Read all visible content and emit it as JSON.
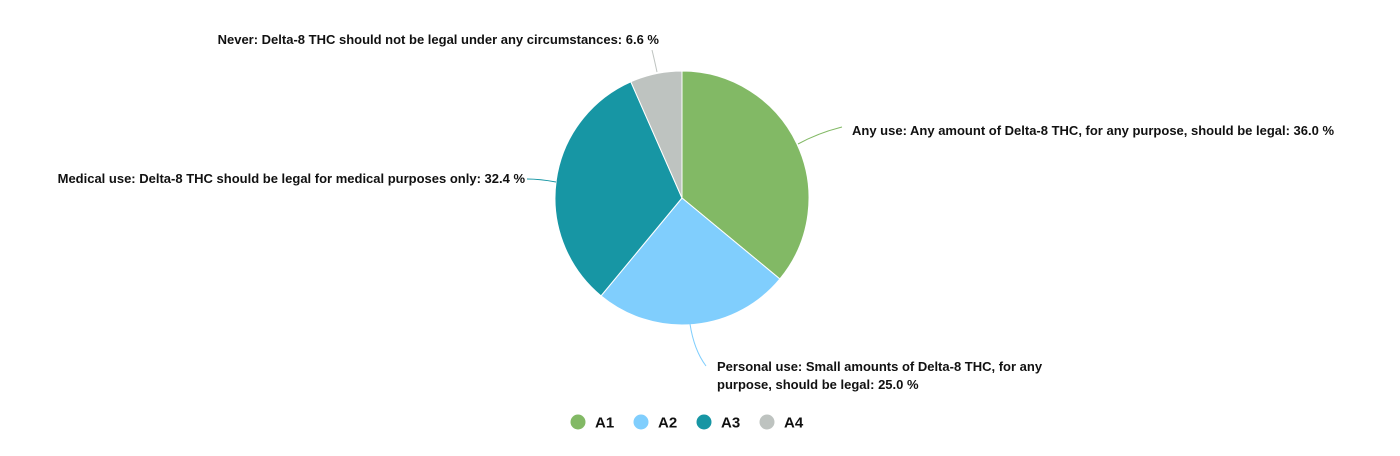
{
  "chart_data": {
    "type": "pie",
    "title": "",
    "slices": [
      {
        "key": "A1",
        "label_lines": [
          "Any use: Any amount of Delta-8 THC, for any purpose, should be legal: 36.0 %"
        ],
        "value": 36.0,
        "color": "#82b965"
      },
      {
        "key": "A2",
        "label_lines": [
          "Personal use: Small amounts of Delta-8 THC, for any",
          "purpose, should be legal: 25.0 %"
        ],
        "value": 25.0,
        "color": "#80cefd"
      },
      {
        "key": "A3",
        "label_lines": [
          "Medical use: Delta-8 THC should be legal for medical purposes only: 32.4 %"
        ],
        "value": 32.4,
        "color": "#1796a4"
      },
      {
        "key": "A4",
        "label_lines": [
          "Never: Delta-8 THC should not be legal under any circumstances: 6.6 %"
        ],
        "value": 6.6,
        "color": "#bec3c0"
      }
    ],
    "legend": {
      "position": "bottom-center",
      "items": [
        {
          "label": "A1",
          "color": "#82b965"
        },
        {
          "label": "A2",
          "color": "#80cefd"
        },
        {
          "label": "A3",
          "color": "#1796a4"
        },
        {
          "label": "A4",
          "color": "#bec3c0"
        }
      ]
    }
  }
}
